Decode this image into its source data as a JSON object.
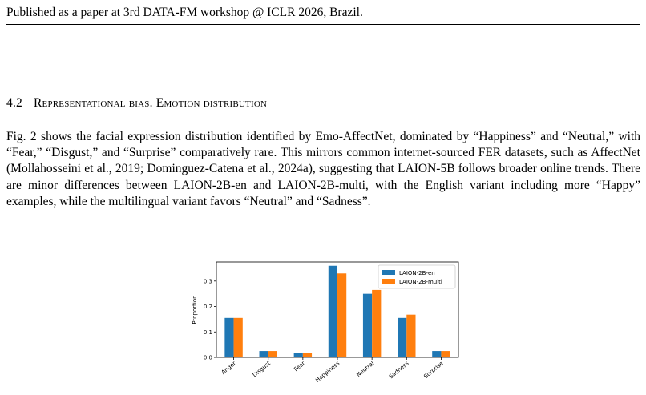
{
  "header": {
    "running_head": "Published as a paper at 3rd DATA-FM workshop @ ICLR 2026, Brazil."
  },
  "section": {
    "number": "4.2",
    "title": "Representational bias. Emotion distribution"
  },
  "paragraph": {
    "text": "Fig. 2 shows the facial expression distribution identified by Emo-AffectNet, dominated by “Hap­piness” and “Neutral,” with “Fear,” “Disgust,” and “Surprise” comparatively rare. This mirrors common internet-sourced FER datasets, such as AffectNet (Mollahosseini et al., 2019; Dominguez-Catena et al., 2024a), suggesting that LAION-5B follows broader online trends. There are minor differences between LAION-2B-en and LAION-2B-multi, with the English variant including more “Happy” examples, while the multilingual variant favors “Neutral” and “Sadness”."
  },
  "colors": {
    "en": "#1f77b4",
    "multi": "#ff7f0e"
  },
  "chart_data": {
    "type": "bar",
    "title": "",
    "xlabel": "",
    "ylabel": "Proportion",
    "ylim": [
      0,
      0.375
    ],
    "yticks": [
      "0.0",
      "0.1",
      "0.2",
      "0.3"
    ],
    "categories": [
      "Anger",
      "Disgust",
      "Fear",
      "Happiness",
      "Neutral",
      "Sadness",
      "Surprise"
    ],
    "series": [
      {
        "name": "LAION-2B-en",
        "values": [
          0.155,
          0.025,
          0.018,
          0.36,
          0.25,
          0.155,
          0.025
        ]
      },
      {
        "name": "LAION-2B-multi",
        "values": [
          0.155,
          0.025,
          0.018,
          0.33,
          0.265,
          0.168,
          0.025
        ]
      }
    ],
    "legend": "top-right",
    "grid": false
  }
}
